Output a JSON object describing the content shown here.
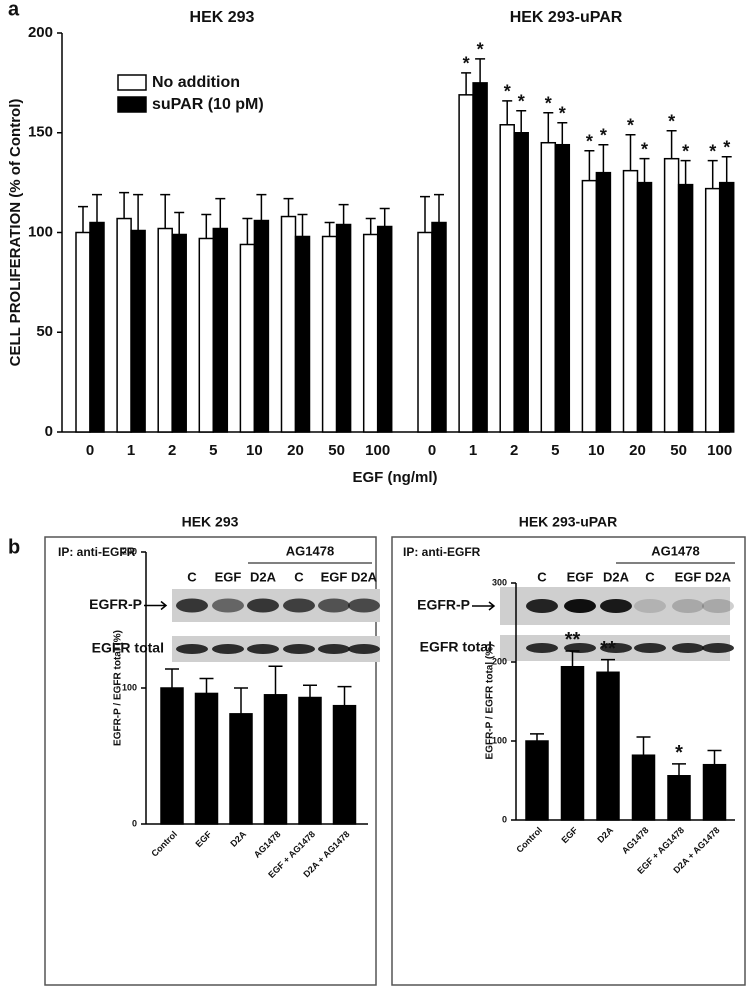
{
  "chart_data": [
    {
      "type": "bar",
      "panel": "a",
      "groups": [
        "HEK 293",
        "HEK 293-uPAR"
      ],
      "categories": [
        "0",
        "1",
        "2",
        "5",
        "10",
        "20",
        "50",
        "100",
        "0",
        "1",
        "2",
        "5",
        "10",
        "20",
        "50",
        "100"
      ],
      "series": [
        {
          "name": "No addition",
          "color": "#ffffff",
          "values": [
            100,
            107,
            102,
            97,
            94,
            108,
            98,
            99,
            100,
            169,
            154,
            145,
            126,
            131,
            137,
            122
          ],
          "errors": [
            13,
            13,
            17,
            12,
            13,
            9,
            7,
            8,
            18,
            11,
            12,
            15,
            15,
            18,
            14,
            14
          ],
          "annotations": [
            null,
            null,
            null,
            null,
            null,
            null,
            null,
            null,
            null,
            "*",
            "*",
            "*",
            "*",
            "*",
            "*",
            "*"
          ]
        },
        {
          "name": "suPAR (10 pM)",
          "color": "#000000",
          "values": [
            105,
            101,
            99,
            102,
            106,
            98,
            104,
            103,
            105,
            175,
            150,
            144,
            130,
            125,
            124,
            125
          ],
          "errors": [
            14,
            18,
            11,
            15,
            13,
            11,
            10,
            9,
            14,
            12,
            11,
            11,
            14,
            12,
            12,
            13
          ],
          "annotations": [
            null,
            null,
            null,
            null,
            null,
            null,
            null,
            null,
            null,
            "*",
            "*",
            "*",
            "*",
            "*",
            "*",
            "*"
          ]
        }
      ],
      "ylim": [
        0,
        200
      ],
      "yticks": [
        0,
        50,
        100,
        150,
        200
      ],
      "ylabel": "CELL PROLIFERATION  (% of Control)",
      "xlabel": "EGF (ng/ml)"
    },
    {
      "type": "bar",
      "panel": "b",
      "title": "HEK 293",
      "blot": {
        "ip": "IP: anti-EGFR",
        "inhibitor": "AG1478",
        "lanes": [
          "C",
          "EGF",
          "D2A",
          "C",
          "EGF",
          "D2A"
        ],
        "rows": [
          "EGFR-P",
          "EGFR total"
        ]
      },
      "categories": [
        "Control",
        "EGF",
        "D2A",
        "AG1478",
        "EGF + AG1478",
        "D2A + AG1478"
      ],
      "values": [
        100,
        96,
        81,
        95,
        93,
        87
      ],
      "errors": [
        14,
        11,
        19,
        21,
        9,
        14
      ],
      "color": "#000000",
      "ylim": [
        0,
        200
      ],
      "yticks": [
        0,
        100,
        200
      ],
      "ylabel": "EGFR-P / EGFR total (%)"
    },
    {
      "type": "bar",
      "title": "HEK 293-uPAR",
      "blot": {
        "ip": "IP: anti-EGFR",
        "inhibitor": "AG1478",
        "lanes": [
          "C",
          "EGF",
          "D2A",
          "C",
          "EGF",
          "D2A"
        ],
        "rows": [
          "EGFR-P",
          "EGFR total"
        ]
      },
      "categories": [
        "Control",
        "EGF",
        "D2A",
        "AG1478",
        "EGF + AG1478",
        "D2A + AG1478"
      ],
      "values": [
        100,
        194,
        187,
        82,
        56,
        70
      ],
      "errors": [
        9,
        20,
        16,
        23,
        15,
        18
      ],
      "color": "#000000",
      "annotations": [
        null,
        "**",
        "**",
        null,
        "*",
        null
      ],
      "ylim": [
        0,
        300
      ],
      "yticks": [
        0,
        100,
        200,
        300
      ],
      "ylabel": "EGFR-P / EGFR total (%)"
    }
  ]
}
